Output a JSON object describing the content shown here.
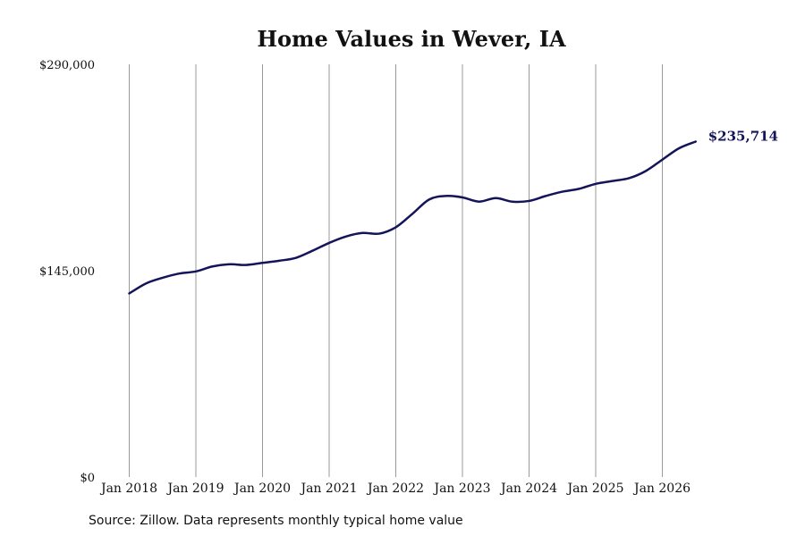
{
  "chart_data": {
    "type": "line",
    "title": "Home Values in Wever, IA",
    "xlabel": "",
    "ylabel": "",
    "ylim": [
      0,
      290000
    ],
    "y_ticks": [
      {
        "value": 0,
        "label": "$0"
      },
      {
        "value": 145000,
        "label": "$145,000"
      },
      {
        "value": 290000,
        "label": "$290,000"
      }
    ],
    "x_range": [
      2018.0,
      2026.5
    ],
    "x_ticks": [
      {
        "value": 2018,
        "label": "Jan 2018"
      },
      {
        "value": 2019,
        "label": "Jan 2019"
      },
      {
        "value": 2020,
        "label": "Jan 2020"
      },
      {
        "value": 2021,
        "label": "Jan 2021"
      },
      {
        "value": 2022,
        "label": "Jan 2022"
      },
      {
        "value": 2023,
        "label": "Jan 2023"
      },
      {
        "value": 2024,
        "label": "Jan 2024"
      },
      {
        "value": 2025,
        "label": "Jan 2025"
      },
      {
        "value": 2026,
        "label": "Jan 2026"
      }
    ],
    "grid": "vertical",
    "line_color": "#14145a",
    "grid_color": "#9a9a9a",
    "series": [
      {
        "points": [
          {
            "x": 2018.0,
            "y": 129000
          },
          {
            "x": 2018.25,
            "y": 136000
          },
          {
            "x": 2018.5,
            "y": 140000
          },
          {
            "x": 2018.75,
            "y": 143000
          },
          {
            "x": 2019.0,
            "y": 144500
          },
          {
            "x": 2019.25,
            "y": 148000
          },
          {
            "x": 2019.5,
            "y": 149500
          },
          {
            "x": 2019.75,
            "y": 149000
          },
          {
            "x": 2020.0,
            "y": 150500
          },
          {
            "x": 2020.25,
            "y": 152000
          },
          {
            "x": 2020.5,
            "y": 154000
          },
          {
            "x": 2020.75,
            "y": 159000
          },
          {
            "x": 2021.0,
            "y": 164500
          },
          {
            "x": 2021.25,
            "y": 169000
          },
          {
            "x": 2021.5,
            "y": 171500
          },
          {
            "x": 2021.75,
            "y": 171000
          },
          {
            "x": 2022.0,
            "y": 175500
          },
          {
            "x": 2022.25,
            "y": 185000
          },
          {
            "x": 2022.5,
            "y": 195000
          },
          {
            "x": 2022.75,
            "y": 197500
          },
          {
            "x": 2023.0,
            "y": 196500
          },
          {
            "x": 2023.25,
            "y": 193500
          },
          {
            "x": 2023.5,
            "y": 196000
          },
          {
            "x": 2023.75,
            "y": 193500
          },
          {
            "x": 2024.0,
            "y": 194000
          },
          {
            "x": 2024.25,
            "y": 197500
          },
          {
            "x": 2024.5,
            "y": 200500
          },
          {
            "x": 2024.75,
            "y": 202500
          },
          {
            "x": 2025.0,
            "y": 206000
          },
          {
            "x": 2025.25,
            "y": 208000
          },
          {
            "x": 2025.5,
            "y": 210000
          },
          {
            "x": 2025.75,
            "y": 215000
          },
          {
            "x": 2026.0,
            "y": 223000
          },
          {
            "x": 2026.25,
            "y": 231000
          },
          {
            "x": 2026.5,
            "y": 235714
          }
        ]
      }
    ],
    "end_label": "$235,714"
  },
  "source": "Source: Zillow. Data represents monthly typical home value"
}
